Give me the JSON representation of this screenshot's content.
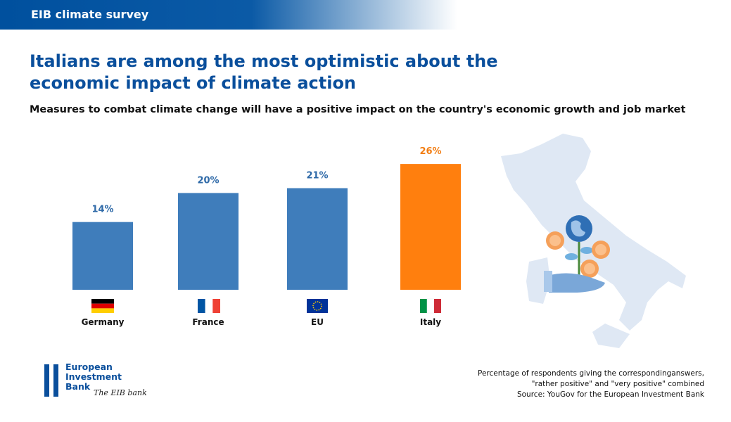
{
  "header": "EIB climate survey",
  "chart_data": {
    "type": "bar",
    "title": "Italians are among the most optimistic about the economic impact of climate action",
    "subtitle": "Measures to combat climate change will have a positive impact on the country's economic growth and job market",
    "categories": [
      "Germany",
      "France",
      "EU",
      "Italy"
    ],
    "values": [
      14,
      20,
      21,
      26
    ],
    "value_labels": [
      "14%",
      "20%",
      "21%",
      "26%"
    ],
    "colors": [
      "#3f7dbb",
      "#3f7dbb",
      "#3f7dbb",
      "#ff7f0e"
    ]
  },
  "footnote": [
    "Percentage of respondents giving the correspondinganswers,",
    "\"rather positive\" and \"very positive\" combined",
    "Source: YouGov for the European Investment Bank"
  ],
  "logo": {
    "lines": [
      "European",
      "Investment",
      "Bank"
    ],
    "tagline": "The EIB bank"
  }
}
